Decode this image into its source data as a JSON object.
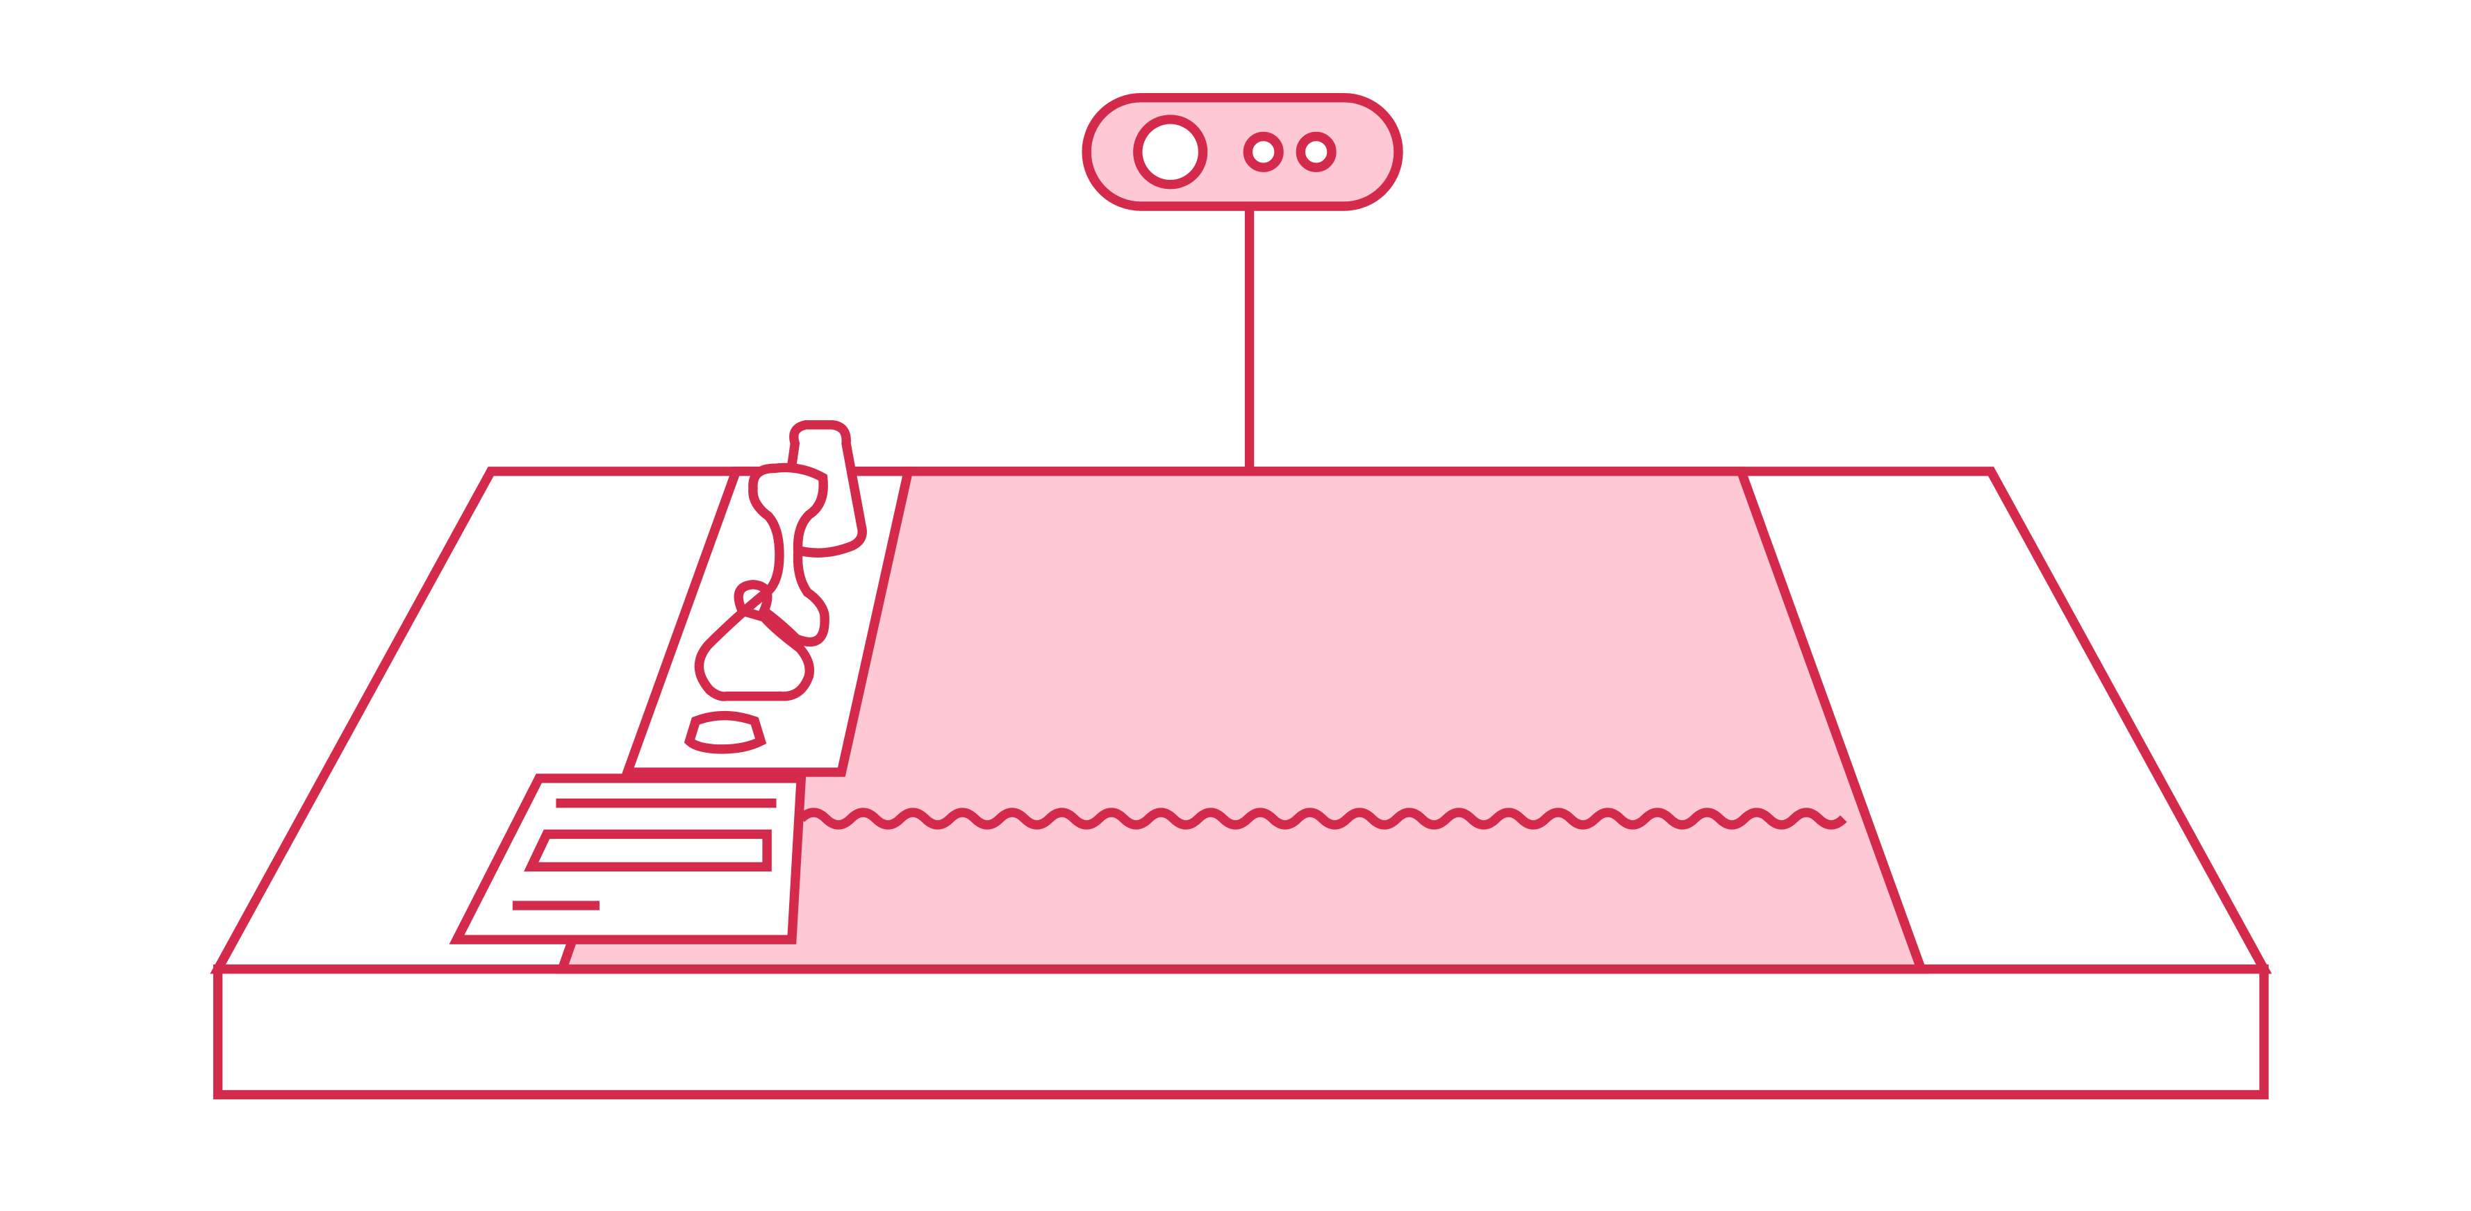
{
  "colors": {
    "stroke": "#d42a4c",
    "fill": "#ffc8d5",
    "background": "#ffffff"
  },
  "icons": {
    "camera": "depth-camera-icon",
    "bottle": "bottle-icon",
    "flask": "flask-icon",
    "dish": "petri-dish-icon",
    "document": "document-icon"
  }
}
